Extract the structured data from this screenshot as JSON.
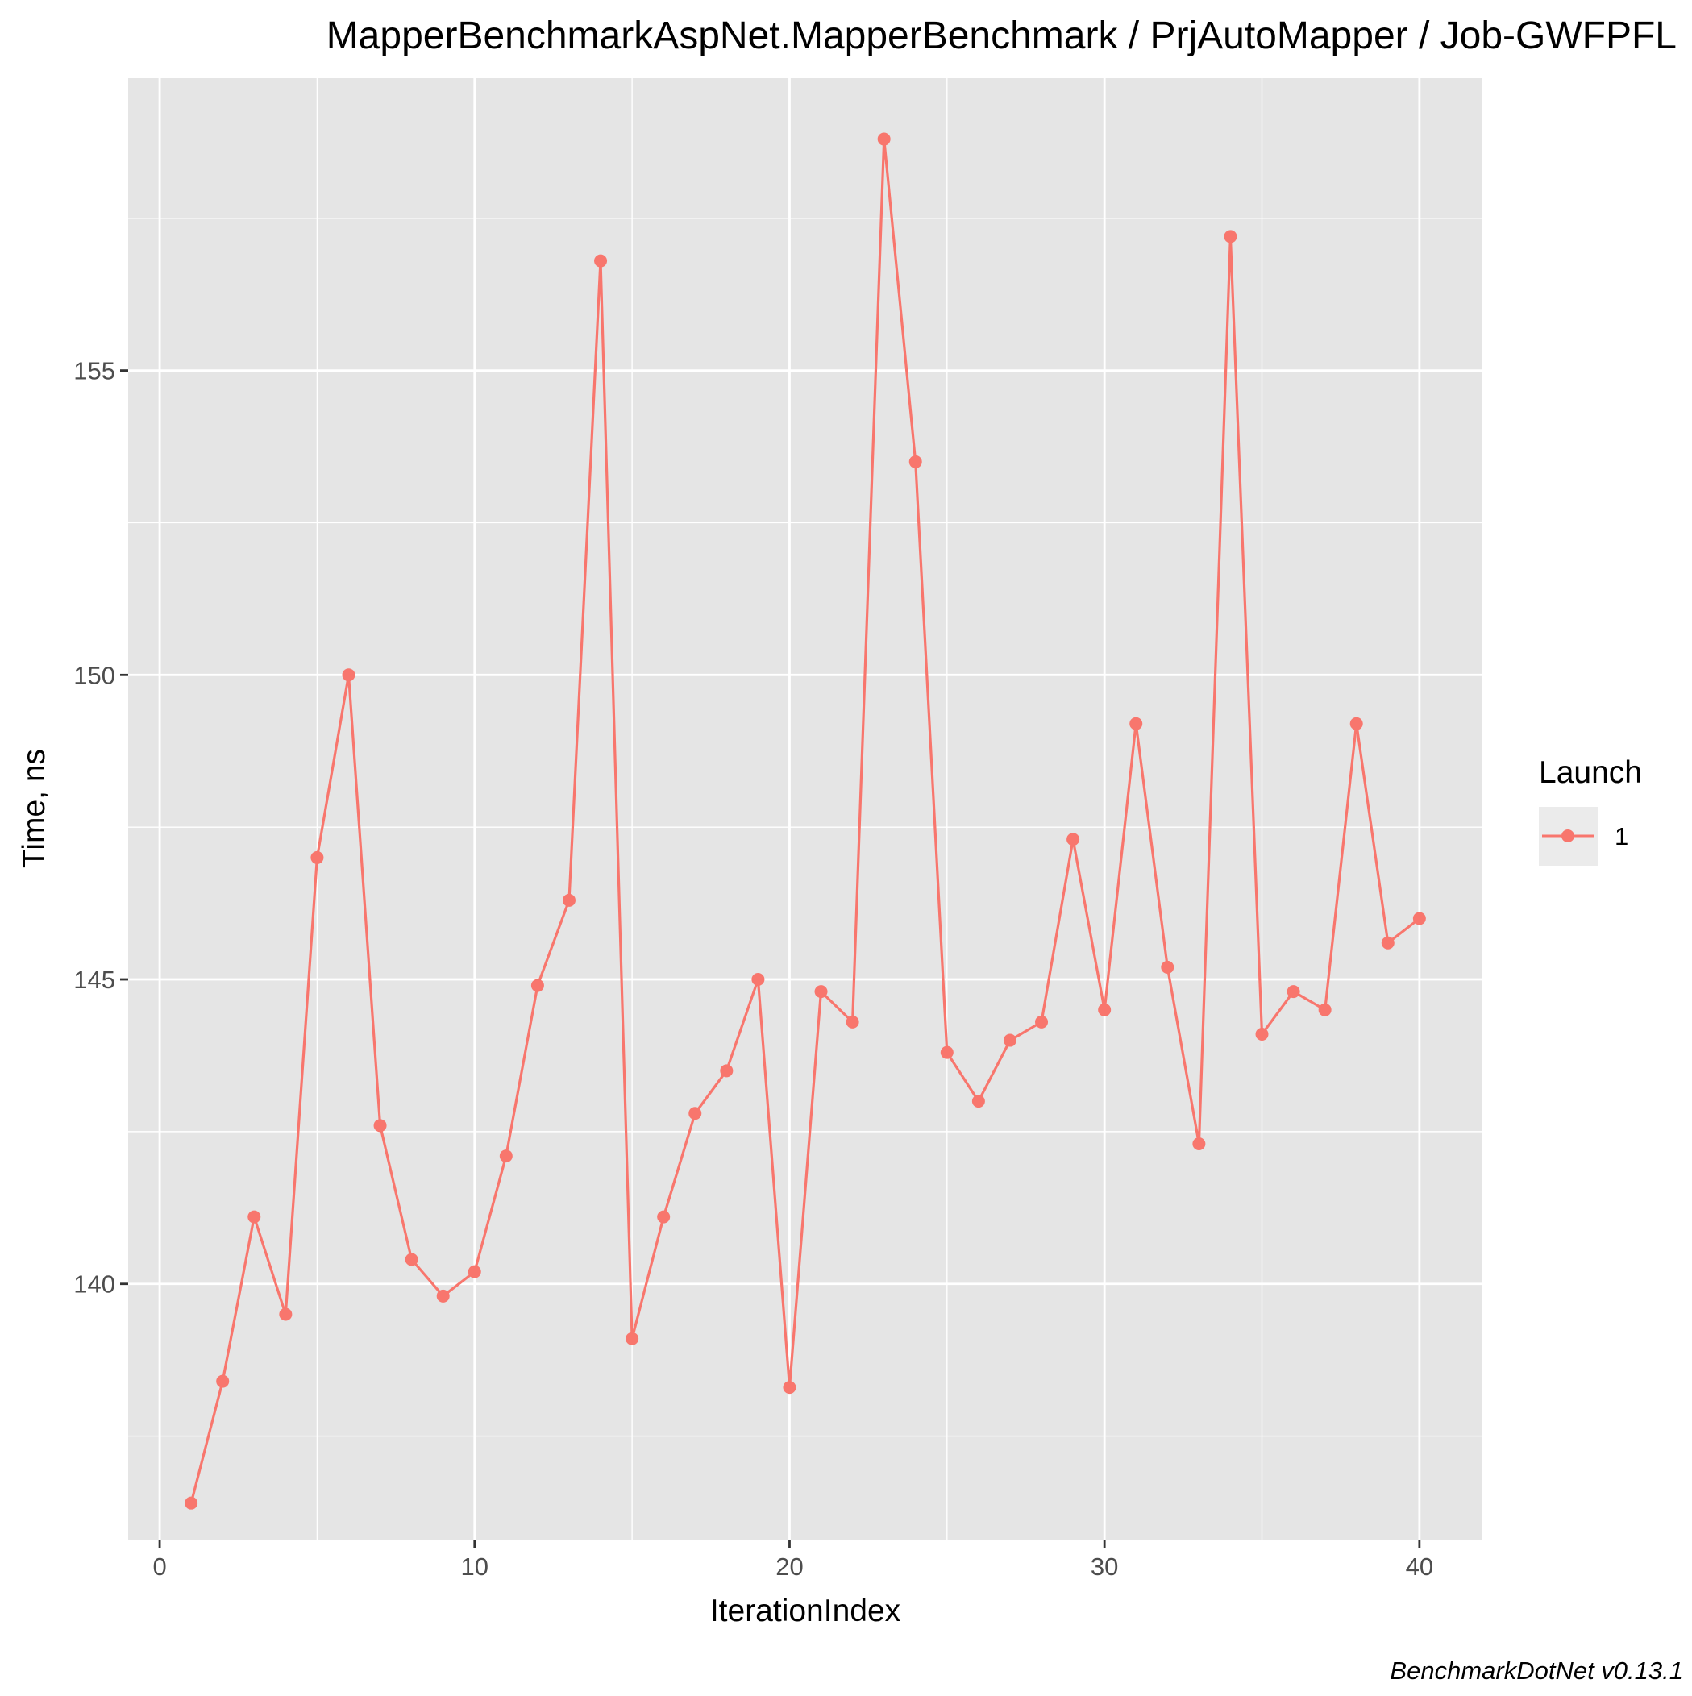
{
  "chart_data": {
    "type": "line",
    "title": "MapperBenchmarkAspNet.MapperBenchmark / PrjAutoMapper / Job-GWFPFL",
    "xlabel": "IterationIndex",
    "ylabel": "Time, ns",
    "caption": "BenchmarkDotNet v0.13.1",
    "xlim": [
      -1,
      42
    ],
    "ylim": [
      135.8,
      159.8
    ],
    "x_ticks": [
      0,
      10,
      20,
      30,
      40
    ],
    "x_tick_labels": [
      "0",
      "10",
      "20",
      "30",
      "40"
    ],
    "y_ticks": [
      140,
      145,
      150,
      155
    ],
    "y_tick_labels": [
      "140",
      "145",
      "150",
      "155"
    ],
    "grid": true,
    "background": "#e5e5e5",
    "legend": {
      "title": "Launch",
      "position": "right"
    },
    "series": [
      {
        "name": "1",
        "color": "#f8766d",
        "x": [
          1,
          2,
          3,
          4,
          5,
          6,
          7,
          8,
          9,
          10,
          11,
          12,
          13,
          14,
          15,
          16,
          17,
          18,
          19,
          20,
          21,
          22,
          23,
          24,
          25,
          26,
          27,
          28,
          29,
          30,
          31,
          32,
          33,
          34,
          35,
          36,
          37,
          38,
          39,
          40
        ],
        "values": [
          136.4,
          138.4,
          141.1,
          139.5,
          147.0,
          150.0,
          142.6,
          140.4,
          139.8,
          140.2,
          142.1,
          144.9,
          146.3,
          156.8,
          139.1,
          141.1,
          142.8,
          143.5,
          145.0,
          138.3,
          144.8,
          144.3,
          158.8,
          153.5,
          143.8,
          143.0,
          144.0,
          144.3,
          147.3,
          144.5,
          149.2,
          145.2,
          142.3,
          157.2,
          144.1,
          144.8,
          144.5,
          149.2,
          145.6,
          146.0
        ]
      }
    ]
  }
}
